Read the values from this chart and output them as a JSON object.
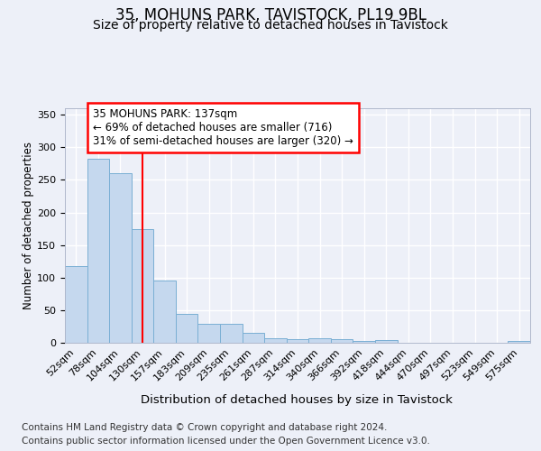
{
  "title1": "35, MOHUNS PARK, TAVISTOCK, PL19 9BL",
  "title2": "Size of property relative to detached houses in Tavistock",
  "xlabel": "Distribution of detached houses by size in Tavistock",
  "ylabel": "Number of detached properties",
  "footnote1": "Contains HM Land Registry data © Crown copyright and database right 2024.",
  "footnote2": "Contains public sector information licensed under the Open Government Licence v3.0.",
  "annotation_line1": "35 MOHUNS PARK: 137sqm",
  "annotation_line2": "← 69% of detached houses are smaller (716)",
  "annotation_line3": "31% of semi-detached houses are larger (320) →",
  "bin_labels": [
    "52sqm",
    "78sqm",
    "104sqm",
    "130sqm",
    "157sqm",
    "183sqm",
    "209sqm",
    "235sqm",
    "261sqm",
    "287sqm",
    "314sqm",
    "340sqm",
    "366sqm",
    "392sqm",
    "418sqm",
    "444sqm",
    "470sqm",
    "497sqm",
    "523sqm",
    "549sqm",
    "575sqm"
  ],
  "bar_values": [
    118,
    283,
    260,
    175,
    95,
    45,
    29,
    29,
    15,
    7,
    6,
    7,
    5,
    3,
    4,
    0,
    0,
    0,
    0,
    0,
    3
  ],
  "bar_color": "#c5d8ee",
  "bar_edge_color": "#7aafd4",
  "red_line_x": 3,
  "ylim": [
    0,
    360
  ],
  "yticks": [
    0,
    50,
    100,
    150,
    200,
    250,
    300,
    350
  ],
  "bg_color": "#edf0f8",
  "plot_bg_color": "#edf0f8",
  "grid_color": "#ffffff",
  "title1_fontsize": 12,
  "title2_fontsize": 10,
  "xlabel_fontsize": 9.5,
  "ylabel_fontsize": 8.5,
  "tick_fontsize": 8,
  "annot_fontsize": 8.5,
  "footnote_fontsize": 7.5
}
